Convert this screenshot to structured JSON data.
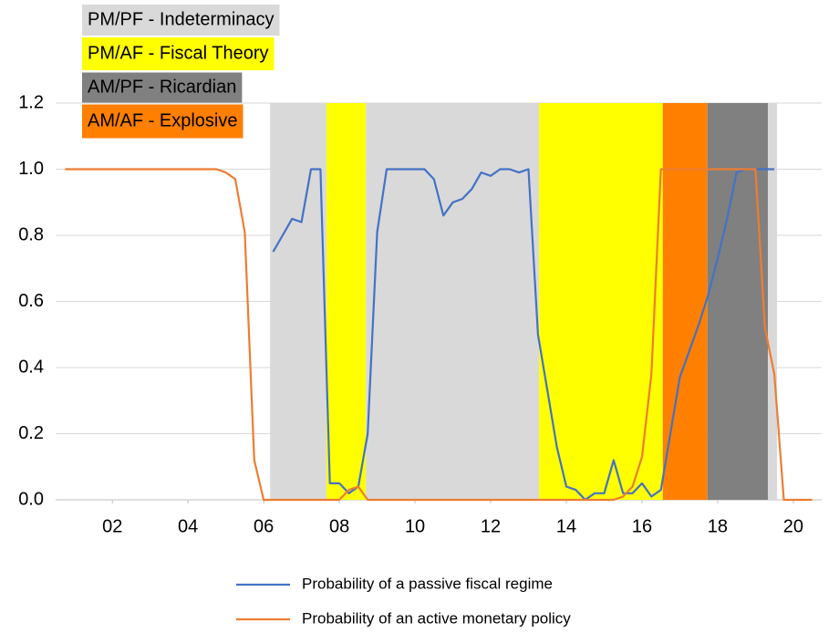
{
  "chart_data": {
    "type": "line",
    "regimes": [
      {
        "name": "PM/PF - Indeterminacy",
        "color": "#d9d9d9"
      },
      {
        "name": "PM/AF - Fiscal Theory",
        "color": "#ffff00"
      },
      {
        "name": "AM/PF - Ricardian",
        "color": "#808080"
      },
      {
        "name": "AM/AF - Explosive",
        "color": "#ff7f00"
      }
    ],
    "periods": [
      {
        "start": 2006.17,
        "end": 2007.66,
        "regime": 0
      },
      {
        "start": 2007.66,
        "end": 2008.7,
        "regime": 1
      },
      {
        "start": 2008.7,
        "end": 2013.28,
        "regime": 0
      },
      {
        "start": 2013.28,
        "end": 2016.55,
        "regime": 1
      },
      {
        "start": 2016.55,
        "end": 2017.73,
        "regime": 3
      },
      {
        "start": 2017.73,
        "end": 2019.33,
        "regime": 2
      },
      {
        "start": 2019.33,
        "end": 2019.57,
        "regime": 0
      }
    ],
    "x": [
      2000.75,
      2001,
      2001.25,
      2001.5,
      2001.75,
      2002,
      2002.25,
      2002.5,
      2002.75,
      2003,
      2003.25,
      2003.5,
      2003.75,
      2004,
      2004.25,
      2004.5,
      2004.75,
      2005,
      2005.25,
      2005.5,
      2005.75,
      2006,
      2006.25,
      2006.5,
      2006.75,
      2007,
      2007.25,
      2007.5,
      2007.75,
      2008,
      2008.25,
      2008.5,
      2008.75,
      2009,
      2009.25,
      2009.5,
      2009.75,
      2010,
      2010.25,
      2010.5,
      2010.75,
      2011,
      2011.25,
      2011.5,
      2011.75,
      2012,
      2012.25,
      2012.5,
      2012.75,
      2013,
      2013.25,
      2013.5,
      2013.75,
      2014,
      2014.25,
      2014.5,
      2014.75,
      2015,
      2015.25,
      2015.5,
      2015.75,
      2016,
      2016.25,
      2016.5,
      2016.75,
      2017,
      2017.25,
      2017.5,
      2017.75,
      2018,
      2018.25,
      2018.5,
      2018.75,
      2019,
      2019.25,
      2019.5,
      2019.75,
      2020,
      2020.25,
      2020.5
    ],
    "series": [
      {
        "name": "Probability of a passive fiscal regime",
        "color": "#4472c4",
        "values": [
          null,
          null,
          null,
          null,
          null,
          null,
          null,
          null,
          null,
          null,
          null,
          null,
          null,
          null,
          null,
          null,
          null,
          null,
          null,
          null,
          null,
          null,
          0.75,
          0.8,
          0.85,
          0.84,
          1.0,
          1.0,
          0.05,
          0.05,
          0.02,
          0.04,
          0.2,
          0.81,
          1.0,
          1.0,
          1.0,
          1.0,
          1.0,
          0.97,
          0.86,
          0.9,
          0.91,
          0.94,
          0.99,
          0.98,
          1.0,
          1.0,
          0.99,
          1.0,
          0.5,
          0.33,
          0.16,
          0.04,
          0.03,
          0.0,
          0.02,
          0.02,
          0.12,
          0.02,
          0.02,
          0.05,
          0.01,
          0.03,
          0.2,
          0.37,
          0.45,
          0.53,
          0.62,
          0.73,
          0.85,
          0.99,
          1.0,
          1.0,
          1.0,
          1.0,
          null,
          null,
          null,
          null
        ]
      },
      {
        "name": "Probability of an active monetary policy",
        "color": "#ed7d31",
        "values": [
          1.0,
          1.0,
          1.0,
          1.0,
          1.0,
          1.0,
          1.0,
          1.0,
          1.0,
          1.0,
          1.0,
          1.0,
          1.0,
          1.0,
          1.0,
          1.0,
          1.0,
          0.99,
          0.97,
          0.81,
          0.12,
          0.0,
          0.0,
          0.0,
          0.0,
          0.0,
          0.0,
          0.0,
          0.0,
          0.0,
          0.03,
          0.04,
          0.0,
          0.0,
          0.0,
          0.0,
          0.0,
          0.0,
          0.0,
          0.0,
          0.0,
          0.0,
          0.0,
          0.0,
          0.0,
          0.0,
          0.0,
          0.0,
          0.0,
          0.0,
          0.0,
          0.0,
          0.0,
          0.0,
          0.0,
          0.0,
          0.0,
          0.0,
          0.0,
          0.01,
          0.04,
          0.13,
          0.38,
          1.0,
          1.0,
          1.0,
          1.0,
          1.0,
          1.0,
          1.0,
          1.0,
          1.0,
          1.0,
          1.0,
          0.52,
          0.38,
          0.0,
          0.0,
          0.0,
          0.0
        ]
      }
    ],
    "xlim": [
      2000.5,
      2020.75
    ],
    "xticks": [
      {
        "value": 2002,
        "label": "02"
      },
      {
        "value": 2004,
        "label": "04"
      },
      {
        "value": 2006,
        "label": "06"
      },
      {
        "value": 2008,
        "label": "08"
      },
      {
        "value": 2010,
        "label": "10"
      },
      {
        "value": 2012,
        "label": "12"
      },
      {
        "value": 2014,
        "label": "14"
      },
      {
        "value": 2016,
        "label": "16"
      },
      {
        "value": 2018,
        "label": "18"
      },
      {
        "value": 2020,
        "label": "20"
      }
    ],
    "ylim": [
      0,
      1.2
    ],
    "yticks": [
      {
        "value": 0,
        "label": "0.0"
      },
      0.2,
      0.4,
      0.6,
      0.8,
      {
        "value": 1,
        "label": "1.0"
      },
      1.2
    ],
    "grid": true
  }
}
